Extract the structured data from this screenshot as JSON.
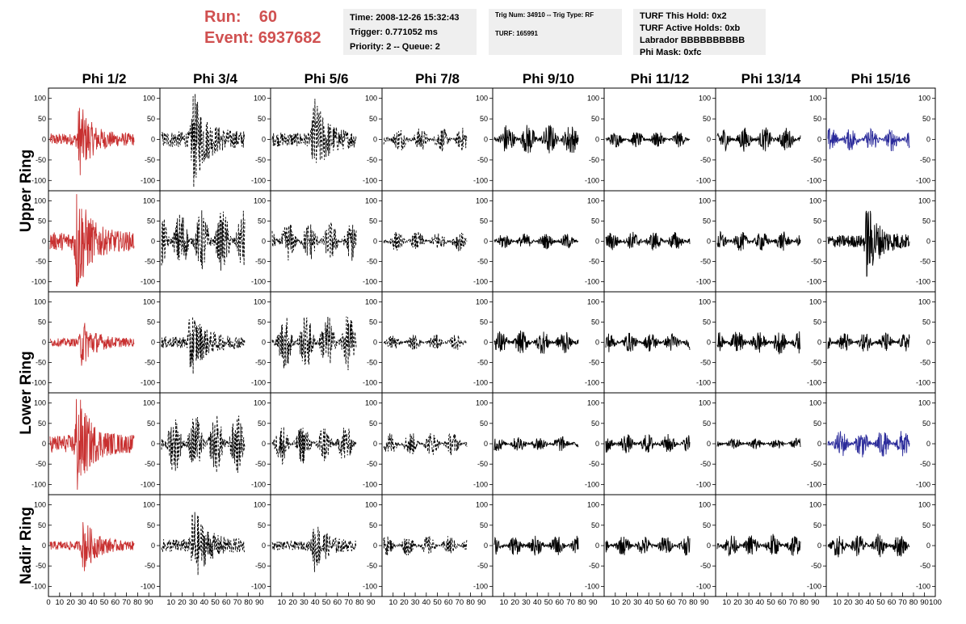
{
  "header": {
    "run_label": "Run:",
    "run_value": "60",
    "event_label": "Event:",
    "event_value": "6937682",
    "run_color": "#d05050"
  },
  "info": {
    "time": "Time: 2008-12-26 15:32:43",
    "trigger": "Trigger: 0.771052 ms",
    "priority": "Priority: 2 -- Queue: 2",
    "trig_num": "Trig Num: 34910 -- Trig Type: RF",
    "turf": "TURF: 165991",
    "turf_hold": "TURF This Hold: 0x2",
    "turf_active": "TURF Active Holds: 0xb",
    "labrador": "Labrador BBBBBBBBBB",
    "phi_mask": "Phi Mask: 0xfc"
  },
  "chart_data": {
    "type": "line",
    "columns": [
      "Phi 1/2",
      "Phi 3/4",
      "Phi 5/6",
      "Phi 7/8",
      "Phi 9/10",
      "Phi 11/12",
      "Phi 13/14",
      "Phi 15/16"
    ],
    "rows": [
      "Upper Ring",
      "Lower Ring",
      "Nadir Ring"
    ],
    "xlim": [
      0,
      100
    ],
    "ylim": [
      -125,
      125
    ],
    "yticks": [
      -100,
      -50,
      0,
      50,
      100
    ],
    "x_tick_labels": [
      "0",
      "10",
      "20",
      "30",
      "40",
      "50",
      "60",
      "70",
      "80",
      "90",
      "100"
    ],
    "grid": false,
    "trace_colors": {
      "triggered": "#c83030",
      "hold": "#2a2a9a",
      "normal": "#000000"
    },
    "panels": [
      {
        "ring": "Upper Ring",
        "col": 0,
        "color": "#c83030",
        "style": "solid",
        "amplitude": 80,
        "peak_x": 35
      },
      {
        "ring": "Upper Ring",
        "col": 1,
        "color": "#000000",
        "style": "dashed",
        "amplitude": 110,
        "peak_x": 38
      },
      {
        "ring": "Upper Ring",
        "col": 2,
        "color": "#000000",
        "style": "dashed",
        "amplitude": 95,
        "peak_x": 50
      },
      {
        "ring": "Upper Ring",
        "col": 3,
        "color": "#000000",
        "style": "dashed",
        "amplitude": 30,
        "peak_x": null
      },
      {
        "ring": "Upper Ring",
        "col": 4,
        "color": "#000000",
        "style": "solid",
        "amplitude": 40,
        "peak_x": null
      },
      {
        "ring": "Upper Ring",
        "col": 5,
        "color": "#000000",
        "style": "solid",
        "amplitude": 20,
        "peak_x": null
      },
      {
        "ring": "Upper Ring",
        "col": 6,
        "color": "#000000",
        "style": "solid",
        "amplitude": 30,
        "peak_x": null
      },
      {
        "ring": "Upper Ring",
        "col": 7,
        "color": "#2a2a9a",
        "style": "solid",
        "amplitude": 30,
        "peak_x": null
      },
      {
        "ring": "Upper Ring",
        "col": 0,
        "color": "#c83030",
        "style": "solid",
        "amplitude": 125,
        "peak_x": 32
      },
      {
        "ring": "Upper Ring",
        "col": 1,
        "color": "#000000",
        "style": "dashed",
        "amplitude": 80,
        "peak_x": null
      },
      {
        "ring": "Upper Ring",
        "col": 2,
        "color": "#000000",
        "style": "dashed",
        "amplitude": 50,
        "peak_x": null
      },
      {
        "ring": "Upper Ring",
        "col": 3,
        "color": "#000000",
        "style": "dashed",
        "amplitude": 25,
        "peak_x": null
      },
      {
        "ring": "Upper Ring",
        "col": 4,
        "color": "#000000",
        "style": "solid",
        "amplitude": 20,
        "peak_x": null
      },
      {
        "ring": "Upper Ring",
        "col": 5,
        "color": "#000000",
        "style": "solid",
        "amplitude": 25,
        "peak_x": null
      },
      {
        "ring": "Upper Ring",
        "col": 6,
        "color": "#000000",
        "style": "solid",
        "amplitude": 25,
        "peak_x": null
      },
      {
        "ring": "Upper Ring",
        "col": 7,
        "color": "#000000",
        "style": "solid",
        "amplitude": 85,
        "peak_x": 48
      },
      {
        "ring": "Lower Ring",
        "col": 0,
        "color": "#c83030",
        "style": "solid",
        "amplitude": 55,
        "peak_x": 38
      },
      {
        "ring": "Lower Ring",
        "col": 1,
        "color": "#000000",
        "style": "dashed",
        "amplitude": 80,
        "peak_x": 35
      },
      {
        "ring": "Lower Ring",
        "col": 2,
        "color": "#000000",
        "style": "dashed",
        "amplitude": 70,
        "peak_x": null
      },
      {
        "ring": "Lower Ring",
        "col": 3,
        "color": "#000000",
        "style": "dashed",
        "amplitude": 20,
        "peak_x": null
      },
      {
        "ring": "Lower Ring",
        "col": 4,
        "color": "#000000",
        "style": "solid",
        "amplitude": 30,
        "peak_x": null
      },
      {
        "ring": "Lower Ring",
        "col": 5,
        "color": "#000000",
        "style": "solid",
        "amplitude": 25,
        "peak_x": null
      },
      {
        "ring": "Lower Ring",
        "col": 6,
        "color": "#000000",
        "style": "solid",
        "amplitude": 30,
        "peak_x": null
      },
      {
        "ring": "Lower Ring",
        "col": 7,
        "color": "#000000",
        "style": "solid",
        "amplitude": 25,
        "peak_x": null
      },
      {
        "ring": "Lower Ring",
        "col": 0,
        "color": "#c83030",
        "style": "solid",
        "amplitude": 120,
        "peak_x": 32
      },
      {
        "ring": "Lower Ring",
        "col": 1,
        "color": "#000000",
        "style": "dashed",
        "amplitude": 75,
        "peak_x": null
      },
      {
        "ring": "Lower Ring",
        "col": 2,
        "color": "#000000",
        "style": "dashed",
        "amplitude": 50,
        "peak_x": null
      },
      {
        "ring": "Lower Ring",
        "col": 3,
        "color": "#000000",
        "style": "dashed",
        "amplitude": 30,
        "peak_x": null
      },
      {
        "ring": "Lower Ring",
        "col": 4,
        "color": "#000000",
        "style": "solid",
        "amplitude": 20,
        "peak_x": null
      },
      {
        "ring": "Lower Ring",
        "col": 5,
        "color": "#000000",
        "style": "solid",
        "amplitude": 25,
        "peak_x": null
      },
      {
        "ring": "Lower Ring",
        "col": 6,
        "color": "#000000",
        "style": "solid",
        "amplitude": 15,
        "peak_x": null
      },
      {
        "ring": "Lower Ring",
        "col": 7,
        "color": "#2a2a9a",
        "style": "solid",
        "amplitude": 35,
        "peak_x": null
      },
      {
        "ring": "Nadir Ring",
        "col": 0,
        "color": "#c83030",
        "style": "solid",
        "amplitude": 60,
        "peak_x": 40
      },
      {
        "ring": "Nadir Ring",
        "col": 1,
        "color": "#000000",
        "style": "dashed",
        "amplitude": 90,
        "peak_x": 38
      },
      {
        "ring": "Nadir Ring",
        "col": 2,
        "color": "#000000",
        "style": "dashed",
        "amplitude": 60,
        "peak_x": 50
      },
      {
        "ring": "Nadir Ring",
        "col": 3,
        "color": "#000000",
        "style": "dashed",
        "amplitude": 25,
        "peak_x": null
      },
      {
        "ring": "Nadir Ring",
        "col": 4,
        "color": "#000000",
        "style": "solid",
        "amplitude": 25,
        "peak_x": null
      },
      {
        "ring": "Nadir Ring",
        "col": 5,
        "color": "#000000",
        "style": "solid",
        "amplitude": 25,
        "peak_x": null
      },
      {
        "ring": "Nadir Ring",
        "col": 6,
        "color": "#000000",
        "style": "solid",
        "amplitude": 30,
        "peak_x": null
      },
      {
        "ring": "Nadir Ring",
        "col": 7,
        "color": "#000000",
        "style": "solid",
        "amplitude": 30,
        "peak_x": null
      }
    ]
  }
}
